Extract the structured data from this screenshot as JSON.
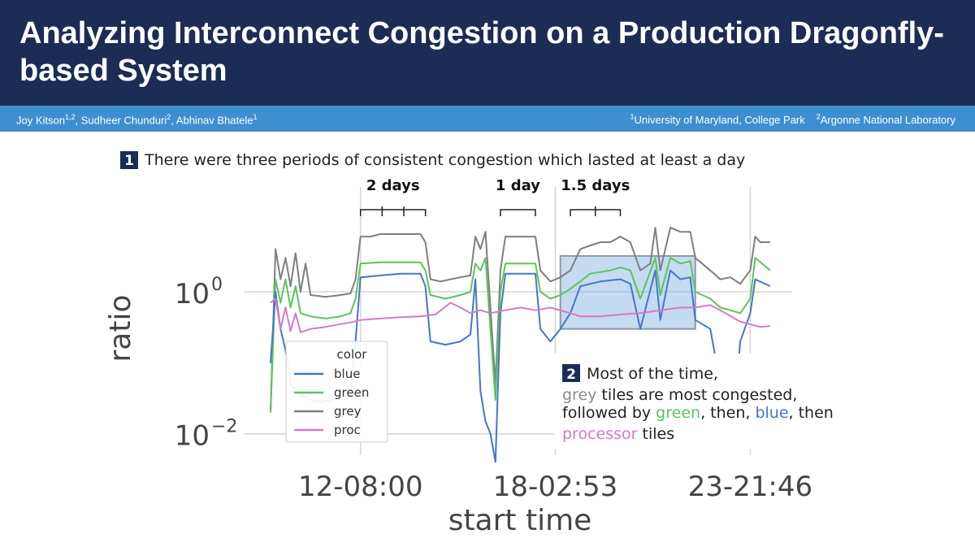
{
  "header": {
    "title": "Analyzing Interconnect Congestion on a Production Dragonfly-based System",
    "colors": {
      "header_bg": "#1b2d55",
      "author_bar_bg": "#3f8fd0"
    }
  },
  "authors": [
    {
      "name": "Joy Kitson",
      "sup": "1,2"
    },
    {
      "name": "Sudheer Chunduri",
      "sup": "2"
    },
    {
      "name": "Abhinav Bhatele",
      "sup": "1"
    }
  ],
  "affiliations": [
    {
      "sup": "1",
      "name": "University of Maryland, College Park"
    },
    {
      "sup": "2",
      "name": "Argonne National Laboratory"
    }
  ],
  "callout1": {
    "number": "1",
    "text": "There were three periods of consistent congestion which lasted at least a day"
  },
  "callout2": {
    "number": "2",
    "lines": [
      [
        {
          "t": "Most of the time,",
          "c": "#222222"
        }
      ],
      [
        {
          "t": "grey",
          "c": "#8a8a8a"
        },
        {
          "t": " tiles are most congested,",
          "c": "#222222"
        }
      ],
      [
        {
          "t": "followed by ",
          "c": "#222222"
        },
        {
          "t": "green",
          "c": "#5cc45c"
        },
        {
          "t": ", then, ",
          "c": "#222222"
        },
        {
          "t": "blue",
          "c": "#4477c9"
        },
        {
          "t": ", then",
          "c": "#222222"
        }
      ],
      [
        {
          "t": "processor",
          "c": "#d878c8"
        },
        {
          "t": " tiles",
          "c": "#222222"
        }
      ]
    ]
  },
  "chart_data": {
    "type": "line",
    "xlabel": "start time",
    "ylabel": "ratio",
    "y_scale": "log",
    "ylim": [
      0.005,
      30
    ],
    "y_ticks": [
      {
        "base": "10",
        "exp": "0",
        "value": 1
      },
      {
        "base": "10",
        "exp": "−2",
        "value": 0.01
      }
    ],
    "x_ticks": [
      {
        "label": "12-08:00",
        "pos": 0.18
      },
      {
        "label": "18-02:53",
        "pos": 0.57
      },
      {
        "label": "23-21:46",
        "pos": 0.96
      }
    ],
    "legend": {
      "title": "color",
      "placement": "lower-left",
      "entries": [
        "blue",
        "green",
        "grey",
        "proc"
      ]
    },
    "grid": true,
    "annotations": [
      {
        "label": "2 days",
        "x_start": 0.18,
        "x_end": 0.31,
        "ticks": 3
      },
      {
        "label": "1 day",
        "x_start": 0.46,
        "x_end": 0.53,
        "ticks": 0
      },
      {
        "label": "1.5 days",
        "x_start": 0.6,
        "x_end": 0.7,
        "ticks": 2
      }
    ],
    "highlight": {
      "x_start": 0.58,
      "x_end": 0.85,
      "y_top": 3.2,
      "y_bottom": 0.3
    },
    "series": [
      {
        "name": "grey",
        "color": "#7f7f7f",
        "points": [
          [
            0.0,
            0.02
          ],
          [
            0.01,
            4
          ],
          [
            0.02,
            1.5
          ],
          [
            0.03,
            3
          ],
          [
            0.04,
            1.2
          ],
          [
            0.05,
            3.5
          ],
          [
            0.06,
            1.0
          ],
          [
            0.07,
            2.5
          ],
          [
            0.08,
            0.9
          ],
          [
            0.11,
            0.85
          ],
          [
            0.14,
            0.9
          ],
          [
            0.16,
            0.95
          ],
          [
            0.17,
            1.5
          ],
          [
            0.18,
            6
          ],
          [
            0.2,
            6
          ],
          [
            0.22,
            6.5
          ],
          [
            0.25,
            6.5
          ],
          [
            0.28,
            6.5
          ],
          [
            0.3,
            6.5
          ],
          [
            0.31,
            5
          ],
          [
            0.32,
            1.5
          ],
          [
            0.34,
            1.4
          ],
          [
            0.36,
            1.5
          ],
          [
            0.38,
            1.6
          ],
          [
            0.4,
            1.7
          ],
          [
            0.41,
            6
          ],
          [
            0.42,
            4
          ],
          [
            0.43,
            7
          ],
          [
            0.44,
            0.6
          ],
          [
            0.45,
            0.05
          ],
          [
            0.46,
            2
          ],
          [
            0.47,
            6
          ],
          [
            0.5,
            6
          ],
          [
            0.53,
            6
          ],
          [
            0.54,
            2
          ],
          [
            0.56,
            1.4
          ],
          [
            0.58,
            1.6
          ],
          [
            0.6,
            2
          ],
          [
            0.62,
            4
          ],
          [
            0.64,
            4.5
          ],
          [
            0.66,
            5
          ],
          [
            0.68,
            5
          ],
          [
            0.7,
            6
          ],
          [
            0.72,
            5
          ],
          [
            0.74,
            2
          ],
          [
            0.76,
            2.5
          ],
          [
            0.77,
            8
          ],
          [
            0.78,
            2
          ],
          [
            0.79,
            4
          ],
          [
            0.8,
            8
          ],
          [
            0.82,
            7
          ],
          [
            0.84,
            7
          ],
          [
            0.85,
            3
          ],
          [
            0.88,
            2
          ],
          [
            0.9,
            1.5
          ],
          [
            0.92,
            1.6
          ],
          [
            0.94,
            1.3
          ],
          [
            0.96,
            2
          ],
          [
            0.97,
            6
          ],
          [
            0.98,
            5
          ],
          [
            1.0,
            5
          ]
        ]
      },
      {
        "name": "green",
        "color": "#5cc45c",
        "points": [
          [
            0.0,
            0.02
          ],
          [
            0.01,
            1.5
          ],
          [
            0.02,
            0.7
          ],
          [
            0.03,
            1.5
          ],
          [
            0.04,
            0.6
          ],
          [
            0.05,
            1.2
          ],
          [
            0.06,
            0.5
          ],
          [
            0.08,
            0.45
          ],
          [
            0.11,
            0.42
          ],
          [
            0.14,
            0.45
          ],
          [
            0.16,
            0.5
          ],
          [
            0.17,
            0.8
          ],
          [
            0.18,
            2.5
          ],
          [
            0.22,
            2.6
          ],
          [
            0.26,
            2.6
          ],
          [
            0.3,
            2.6
          ],
          [
            0.31,
            2
          ],
          [
            0.32,
            0.9
          ],
          [
            0.35,
            0.8
          ],
          [
            0.38,
            0.9
          ],
          [
            0.4,
            1.0
          ],
          [
            0.41,
            2.5
          ],
          [
            0.42,
            2
          ],
          [
            0.43,
            3
          ],
          [
            0.44,
            0.3
          ],
          [
            0.45,
            0.03
          ],
          [
            0.46,
            1.0
          ],
          [
            0.47,
            2.5
          ],
          [
            0.5,
            2.5
          ],
          [
            0.53,
            2.5
          ],
          [
            0.54,
            1.0
          ],
          [
            0.56,
            0.8
          ],
          [
            0.58,
            0.9
          ],
          [
            0.6,
            1.1
          ],
          [
            0.64,
            1.8
          ],
          [
            0.68,
            2
          ],
          [
            0.7,
            2.2
          ],
          [
            0.72,
            2
          ],
          [
            0.74,
            0.8
          ],
          [
            0.77,
            3
          ],
          [
            0.78,
            0.9
          ],
          [
            0.8,
            3
          ],
          [
            0.82,
            2.5
          ],
          [
            0.84,
            2.7
          ],
          [
            0.85,
            1.0
          ],
          [
            0.88,
            0.8
          ],
          [
            0.9,
            0.6
          ],
          [
            0.92,
            0.55
          ],
          [
            0.94,
            0.5
          ],
          [
            0.96,
            0.8
          ],
          [
            0.97,
            3
          ],
          [
            1.0,
            2
          ]
        ]
      },
      {
        "name": "blue",
        "color": "#4477c9",
        "points": [
          [
            0.0,
            0.1
          ],
          [
            0.01,
            1.0
          ],
          [
            0.02,
            0.3
          ],
          [
            0.03,
            0.15
          ],
          [
            0.04,
            0.05
          ],
          [
            0.06,
            0.035
          ],
          [
            0.08,
            0.03
          ],
          [
            0.1,
            0.028
          ],
          [
            0.12,
            0.03
          ],
          [
            0.14,
            0.032
          ],
          [
            0.16,
            0.035
          ],
          [
            0.17,
            0.2
          ],
          [
            0.18,
            1.6
          ],
          [
            0.22,
            1.7
          ],
          [
            0.26,
            1.8
          ],
          [
            0.3,
            1.8
          ],
          [
            0.31,
            1.2
          ],
          [
            0.32,
            0.2
          ],
          [
            0.35,
            0.18
          ],
          [
            0.38,
            0.2
          ],
          [
            0.4,
            0.25
          ],
          [
            0.41,
            1.5
          ],
          [
            0.42,
            0.04
          ],
          [
            0.43,
            0.015
          ],
          [
            0.44,
            0.01
          ],
          [
            0.45,
            0.004
          ],
          [
            0.46,
            0.5
          ],
          [
            0.47,
            1.8
          ],
          [
            0.5,
            1.8
          ],
          [
            0.53,
            1.8
          ],
          [
            0.54,
            0.3
          ],
          [
            0.56,
            0.2
          ],
          [
            0.58,
            0.3
          ],
          [
            0.6,
            0.5
          ],
          [
            0.62,
            1.2
          ],
          [
            0.66,
            1.4
          ],
          [
            0.7,
            1.5
          ],
          [
            0.72,
            1.3
          ],
          [
            0.74,
            0.3
          ],
          [
            0.77,
            2
          ],
          [
            0.78,
            0.4
          ],
          [
            0.8,
            2
          ],
          [
            0.82,
            1.5
          ],
          [
            0.84,
            1.6
          ],
          [
            0.85,
            0.4
          ],
          [
            0.88,
            0.3
          ],
          [
            0.9,
            0.05
          ],
          [
            0.91,
            0.015
          ],
          [
            0.92,
            0.04
          ],
          [
            0.93,
            0.03
          ],
          [
            0.94,
            0.2
          ],
          [
            0.96,
            0.5
          ],
          [
            0.97,
            1.5
          ],
          [
            1.0,
            1.2
          ]
        ]
      },
      {
        "name": "proc",
        "color": "#d878c8",
        "points": [
          [
            0.0,
            0.7
          ],
          [
            0.01,
            0.8
          ],
          [
            0.02,
            0.3
          ],
          [
            0.03,
            0.6
          ],
          [
            0.04,
            0.28
          ],
          [
            0.05,
            0.5
          ],
          [
            0.06,
            0.27
          ],
          [
            0.08,
            0.3
          ],
          [
            0.11,
            0.32
          ],
          [
            0.14,
            0.35
          ],
          [
            0.16,
            0.37
          ],
          [
            0.18,
            0.4
          ],
          [
            0.22,
            0.42
          ],
          [
            0.26,
            0.44
          ],
          [
            0.3,
            0.45
          ],
          [
            0.33,
            0.48
          ],
          [
            0.36,
            0.7
          ],
          [
            0.38,
            0.6
          ],
          [
            0.4,
            0.5
          ],
          [
            0.42,
            0.55
          ],
          [
            0.44,
            0.5
          ],
          [
            0.47,
            0.55
          ],
          [
            0.5,
            0.6
          ],
          [
            0.53,
            0.55
          ],
          [
            0.56,
            0.6
          ],
          [
            0.6,
            0.5
          ],
          [
            0.62,
            0.45
          ],
          [
            0.66,
            0.45
          ],
          [
            0.7,
            0.48
          ],
          [
            0.74,
            0.5
          ],
          [
            0.78,
            0.55
          ],
          [
            0.82,
            0.6
          ],
          [
            0.85,
            0.6
          ],
          [
            0.88,
            0.65
          ],
          [
            0.9,
            0.55
          ],
          [
            0.94,
            0.38
          ],
          [
            0.98,
            0.32
          ],
          [
            1.0,
            0.33
          ]
        ]
      }
    ]
  }
}
